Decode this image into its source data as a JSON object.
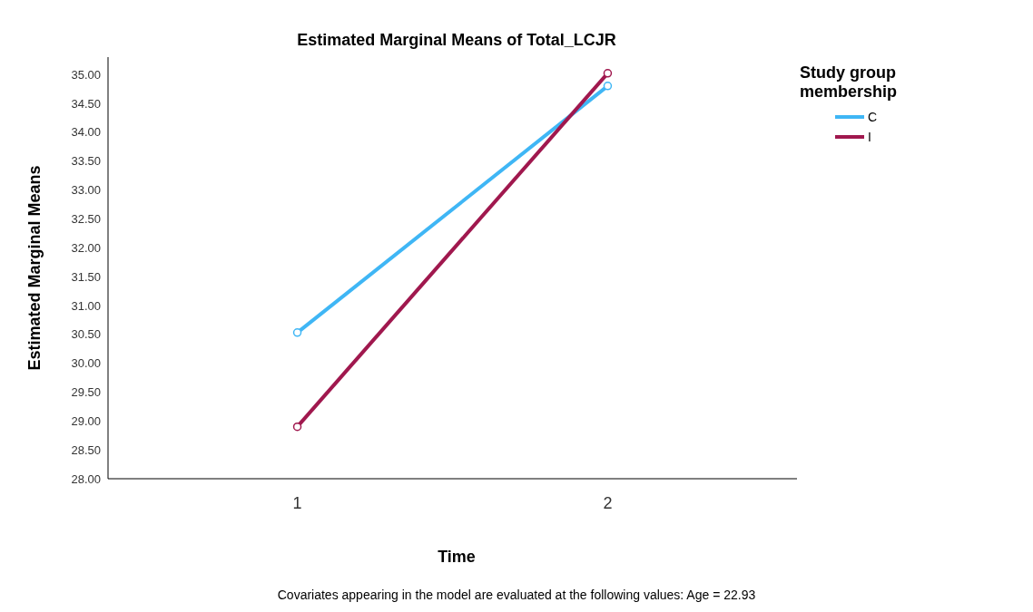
{
  "chart_data": {
    "type": "line",
    "title": "Estimated Marginal Means of Total_LCJR",
    "xlabel": "Time",
    "ylabel": "Estimated Marginal Means",
    "legend_title": "Study group membership",
    "categories": [
      "1",
      "2"
    ],
    "series": [
      {
        "name": "C",
        "color": "#3fb6f5",
        "values": [
          30.53,
          34.8
        ]
      },
      {
        "name": "I",
        "color": "#a0184e",
        "values": [
          28.9,
          35.02
        ]
      }
    ],
    "ylim": [
      28,
      35.3
    ],
    "yticks": [
      {
        "value": 28,
        "label": "28.00"
      },
      {
        "value": 28.5,
        "label": "28.50"
      },
      {
        "value": 29,
        "label": "29.00"
      },
      {
        "value": 29.5,
        "label": "29.50"
      },
      {
        "value": 30,
        "label": "30.00"
      },
      {
        "value": 30.5,
        "label": "30.50"
      },
      {
        "value": 31,
        "label": "31.00"
      },
      {
        "value": 31.5,
        "label": "31.50"
      },
      {
        "value": 32,
        "label": "32.00"
      },
      {
        "value": 32.5,
        "label": "32.50"
      },
      {
        "value": 33,
        "label": "33.00"
      },
      {
        "value": 33.5,
        "label": "33.50"
      },
      {
        "value": 34,
        "label": "34.00"
      },
      {
        "value": 34.5,
        "label": "34.50"
      },
      {
        "value": 35,
        "label": "35.00"
      }
    ],
    "grid": false,
    "legend": "top right",
    "marker": "circle",
    "line_style": "solid",
    "annotations": [
      "Covariates appearing in the model are evaluated at the following values: Age = 22.93"
    ]
  }
}
